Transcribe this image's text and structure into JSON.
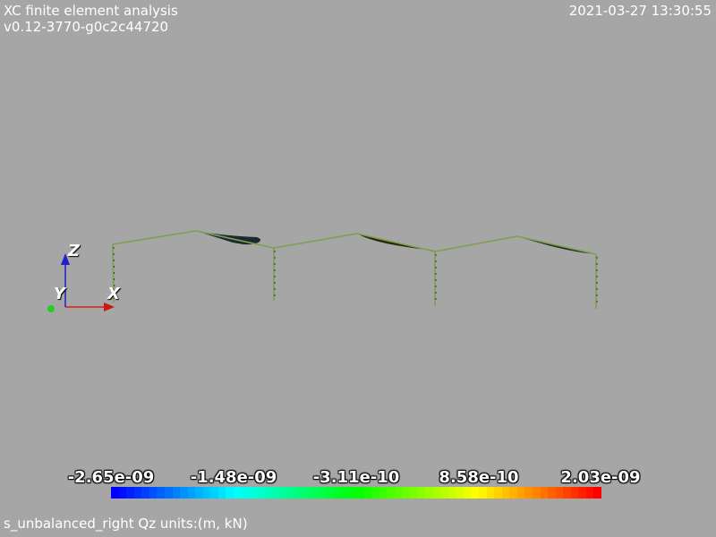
{
  "header": {
    "title": "XC finite element analysis",
    "version": "v0.12-3770-g0c2c44720",
    "timestamp": "2021-03-27 13:30:55"
  },
  "axes": {
    "x_label": "X",
    "y_label": "Y",
    "z_label": "Z",
    "x_color": "#d42020",
    "y_color": "#20d020",
    "z_color": "#2020c8"
  },
  "legend": {
    "ticks": [
      "-2.65e-09",
      "-1.48e-09",
      "-3.11e-10",
      "8.58e-10",
      "2.03e-09"
    ],
    "min_color": "#0000ff",
    "max_color": "#ff2000"
  },
  "footer": {
    "caption": "s_unbalanced_right Qz units:(m, kN)"
  },
  "colors": {
    "background": "#a6a6a6",
    "frame_line": "#7fa050",
    "deformed_fill": "#1a2a30"
  }
}
